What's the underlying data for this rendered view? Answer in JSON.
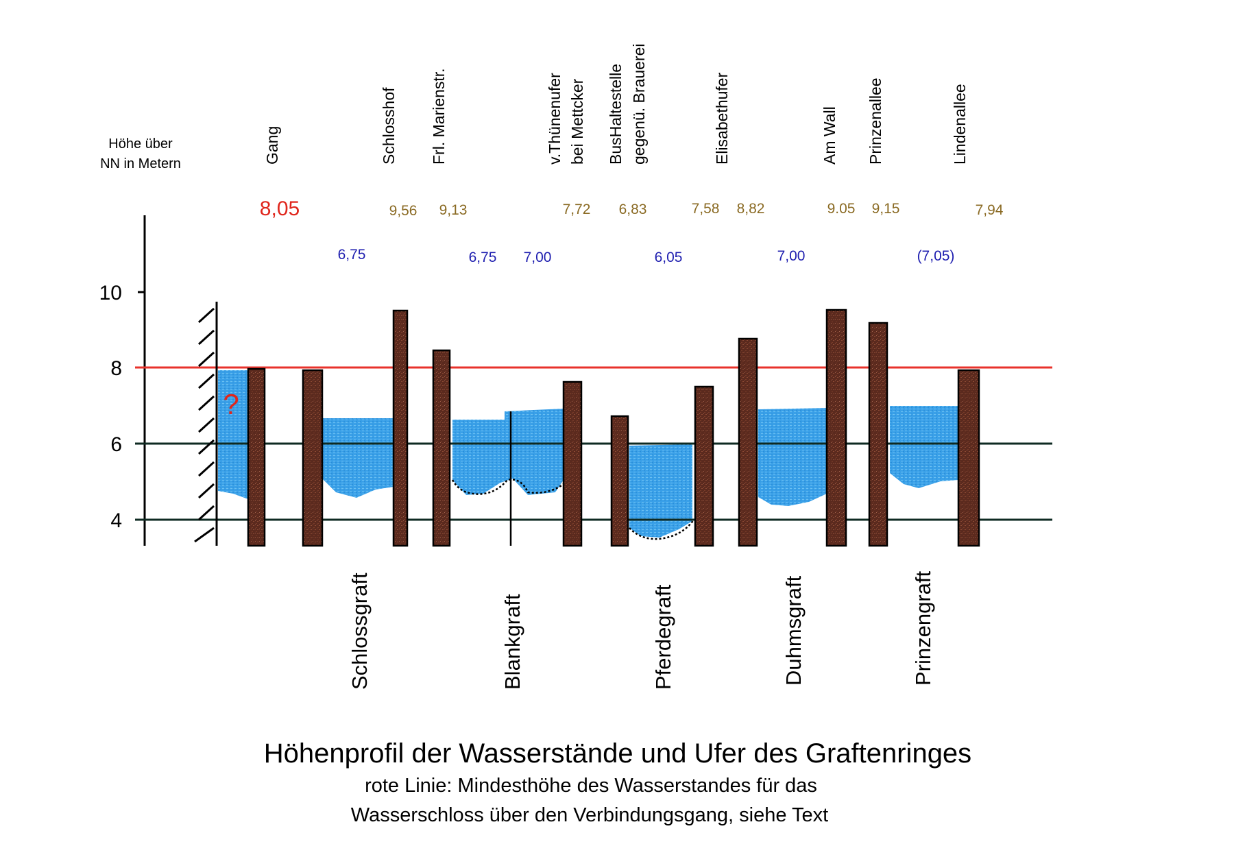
{
  "axis_label_line1": "Höhe über",
  "axis_label_line2": "NN in Metern",
  "ticks": [
    "10",
    "8",
    "6",
    "4"
  ],
  "locations": {
    "gang": "Gang",
    "schlosshof": "Schlosshof",
    "marienstr": "Frl. Marienstr.",
    "thuenenufer_1": "v.Thünenufer",
    "thuenenufer_2": "bei Mettcker",
    "bushaltestelle_1": "BusHaltestelle",
    "bushaltestelle_2": "gegenü. Brauerei",
    "elisabethufer": "Elisabethufer",
    "am_wall": "Am Wall",
    "prinzenallee": "Prinzenallee",
    "lindenallee": "Lindenallee"
  },
  "bank_heights": {
    "gang": "8,05",
    "schlosshof": "9,56",
    "marienstr": "9,13",
    "thuenenufer": "7,72",
    "bushaltestelle": "6,83",
    "elisabethufer_a": "7,58",
    "elisabethufer_b": "8,82",
    "am_wall": "9.05",
    "prinzenallee": "9,15",
    "lindenallee": "7,94"
  },
  "water_levels": {
    "schlossgraft": "6,75",
    "blankgraft_a": "6,75",
    "blankgraft_b": "7,00",
    "pferdegraft": "6,05",
    "duhmsgraft": "7,00",
    "prinzengraft": "(7,05)"
  },
  "sections": {
    "schlossgraft": "Schlossgraft",
    "blankgraft": "Blankgraft",
    "pferdegraft": "Pferdegraft",
    "duhmsgraft": "Duhmsgraft",
    "prinzengraft": "Prinzengraft"
  },
  "question_mark": "?",
  "title": "Höhenprofil der Wasserstände und Ufer des Graftenringes",
  "subtitle_line1": "rote Linie: Mindesthöhe des Wasserstandes für das",
  "subtitle_line2": "Wasserschloss über den Verbindungsgang, siehe Text",
  "colors": {
    "water": "#3aa0e8",
    "bank": "#5b2a1e",
    "red_line": "#e8322b",
    "grid_line": "#0e2a22",
    "bank_label": "#8a6a23",
    "water_label": "#2020b0"
  }
}
